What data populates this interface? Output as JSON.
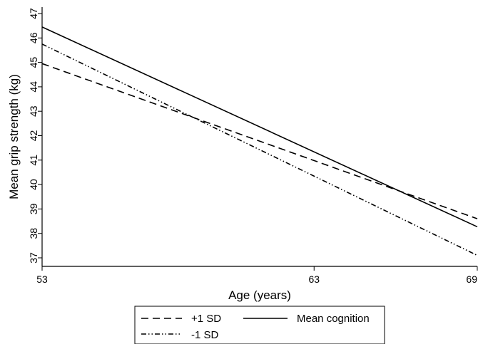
{
  "chart_data": {
    "type": "line",
    "title": "",
    "xlabel": "Age (years)",
    "ylabel": "Mean grip strength (kg)",
    "xlim": [
      53,
      69
    ],
    "ylim": [
      37,
      47
    ],
    "x_ticks": [
      53,
      63,
      69
    ],
    "y_ticks": [
      37,
      38,
      39,
      40,
      41,
      42,
      43,
      44,
      45,
      46,
      47
    ],
    "grid": false,
    "legend_position": "bottom",
    "series": [
      {
        "name": "+1 SD",
        "style": "dashed",
        "color": "#000000",
        "x": [
          53,
          69
        ],
        "y": [
          44.95,
          38.6
        ]
      },
      {
        "name": "Mean cognition",
        "style": "solid",
        "color": "#000000",
        "x": [
          53,
          69
        ],
        "y": [
          46.45,
          38.27
        ]
      },
      {
        "name": "-1 SD",
        "style": "dash-dot-dot",
        "color": "#000000",
        "x": [
          53,
          69
        ],
        "y": [
          45.75,
          37.1
        ]
      }
    ]
  }
}
